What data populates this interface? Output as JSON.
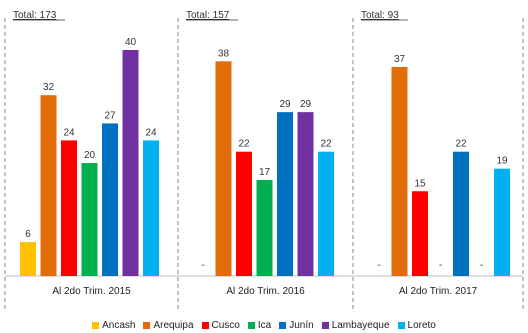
{
  "chart_data": {
    "type": "bar",
    "categories": [
      "Al 2do Trim. 2015",
      "Al 2do Trim. 2016",
      "Al 2do Trim. 2017"
    ],
    "totals": [
      "Total: 173",
      "Total: 157",
      "Total: 93"
    ],
    "series": [
      {
        "name": "Ancash",
        "color": "#FFC000",
        "values": [
          6,
          null,
          null
        ],
        "labels": [
          "6",
          "-",
          "-"
        ]
      },
      {
        "name": "Arequipa",
        "color": "#E36C0A",
        "values": [
          32,
          38,
          37
        ],
        "labels": [
          "32",
          "38",
          "37"
        ]
      },
      {
        "name": "Cusco",
        "color": "#FF0000",
        "values": [
          24,
          22,
          15
        ],
        "labels": [
          "24",
          "22",
          "15"
        ]
      },
      {
        "name": "Ica",
        "color": "#00B050",
        "values": [
          20,
          17,
          null
        ],
        "labels": [
          "20",
          "17",
          "-"
        ]
      },
      {
        "name": "Junín",
        "color": "#0070C0",
        "values": [
          27,
          29,
          22
        ],
        "labels": [
          "27",
          "29",
          "22"
        ]
      },
      {
        "name": "Lambayeque",
        "color": "#7030A0",
        "values": [
          40,
          29,
          null
        ],
        "labels": [
          "40",
          "29",
          "-"
        ]
      },
      {
        "name": "Loreto",
        "color": "#00B0F0",
        "values": [
          24,
          22,
          19
        ],
        "labels": [
          "24",
          "22",
          "19"
        ]
      }
    ],
    "ylim": [
      0,
      42
    ],
    "legend_position": "bottom",
    "grid": false
  }
}
